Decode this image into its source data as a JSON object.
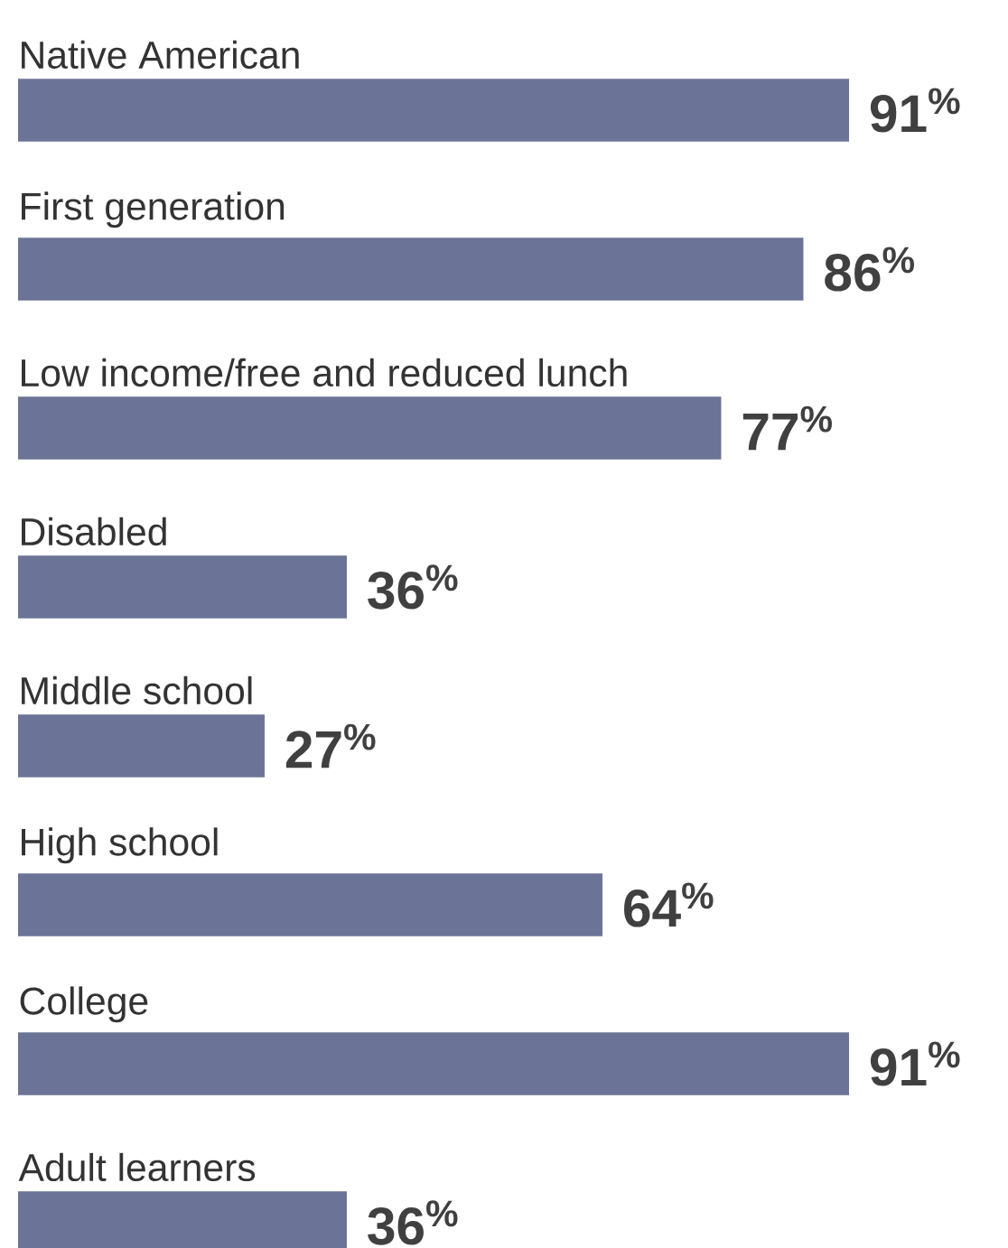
{
  "chart_data": {
    "type": "bar",
    "orientation": "horizontal",
    "categories": [
      "Native American",
      "First generation",
      "Low income/free and reduced lunch",
      "Disabled",
      "Middle school",
      "High school",
      "College",
      "Adult learners"
    ],
    "values": [
      91,
      86,
      77,
      36,
      27,
      64,
      91,
      36
    ],
    "value_labels": [
      "91$^{%}$",
      "86$^{%}$",
      "77$^{%}$",
      "36$^{%}$",
      "27$^{%}$",
      "64$^{%}$",
      "91$^{%}$",
      "36$^{%}$"
    ],
    "color": "#6b7396"
  }
}
